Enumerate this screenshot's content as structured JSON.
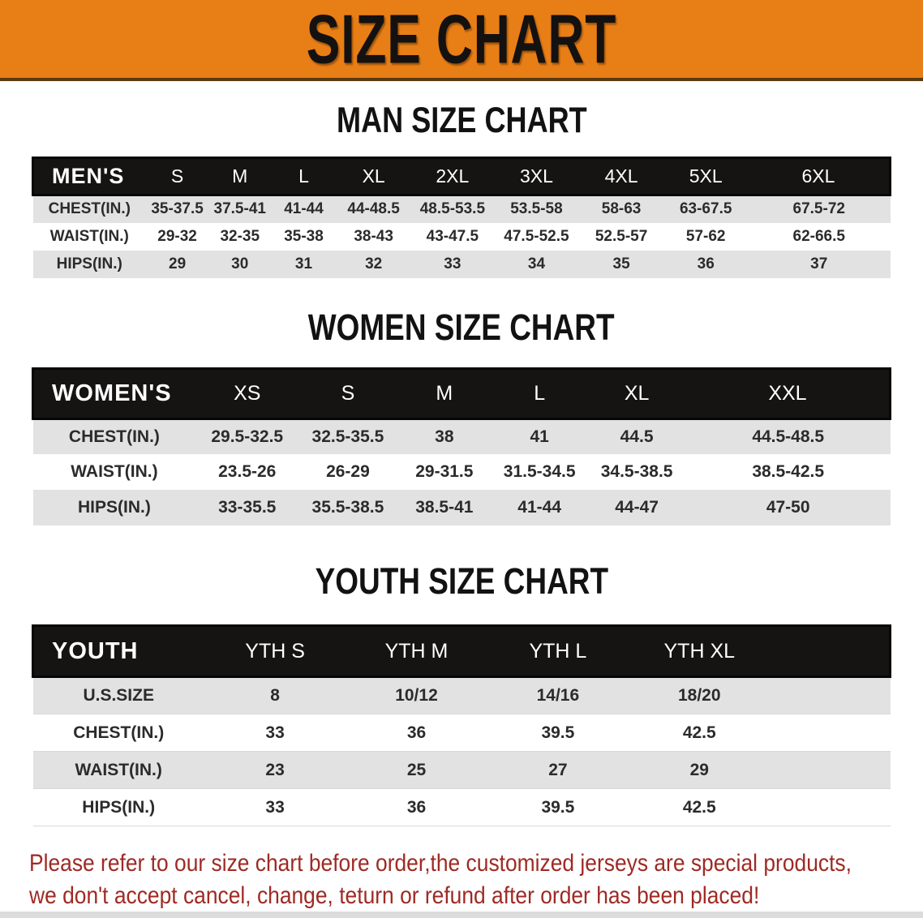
{
  "banner": {
    "title": "SIZE CHART"
  },
  "men": {
    "title": "MAN SIZE CHART",
    "header": [
      "MEN'S",
      "S",
      "M",
      "L",
      "XL",
      "2XL",
      "3XL",
      "4XL",
      "5XL",
      "6XL"
    ],
    "rows": [
      [
        "CHEST(IN.)",
        "35-37.5",
        "37.5-41",
        "41-44",
        "44-48.5",
        "48.5-53.5",
        "53.5-58",
        "58-63",
        "63-67.5",
        "67.5-72"
      ],
      [
        "WAIST(IN.)",
        "29-32",
        "32-35",
        "35-38",
        "38-43",
        "43-47.5",
        "47.5-52.5",
        "52.5-57",
        "57-62",
        "62-66.5"
      ],
      [
        "HIPS(IN.)",
        "29",
        "30",
        "31",
        "32",
        "33",
        "34",
        "35",
        "36",
        "37"
      ]
    ]
  },
  "women": {
    "title": "WOMEN SIZE CHART",
    "header": [
      "WOMEN'S",
      "XS",
      "S",
      "M",
      "L",
      "XL",
      "XXL"
    ],
    "rows": [
      [
        "CHEST(IN.)",
        "29.5-32.5",
        "32.5-35.5",
        "38",
        "41",
        "44.5",
        "44.5-48.5"
      ],
      [
        "WAIST(IN.)",
        "23.5-26",
        "26-29",
        "29-31.5",
        "31.5-34.5",
        "34.5-38.5",
        "38.5-42.5"
      ],
      [
        "HIPS(IN.)",
        "33-35.5",
        "35.5-38.5",
        "38.5-41",
        "41-44",
        "44-47",
        "47-50"
      ]
    ]
  },
  "youth": {
    "title": "YOUTH SIZE CHART",
    "header": [
      "YOUTH",
      "YTH S",
      "YTH M",
      "YTH L",
      "YTH XL"
    ],
    "rows": [
      [
        "U.S.SIZE",
        "8",
        "10/12",
        "14/16",
        "18/20"
      ],
      [
        "CHEST(IN.)",
        "33",
        "36",
        "39.5",
        "42.5"
      ],
      [
        "WAIST(IN.)",
        "23",
        "25",
        "27",
        "29"
      ],
      [
        "HIPS(IN.)",
        "33",
        "36",
        "39.5",
        "42.5"
      ]
    ]
  },
  "disclaimer": {
    "line1": "Please refer to our size chart before order,the customized jerseys are special products,",
    "line2": "we don't accept cancel, change, teturn or refund after order has been placed!"
  },
  "colors": {
    "banner_bg": "#e87e16",
    "table_header_bg": "#161313",
    "row_stripe": "#e2e2e2",
    "disclaimer_text": "#9e2a24"
  }
}
